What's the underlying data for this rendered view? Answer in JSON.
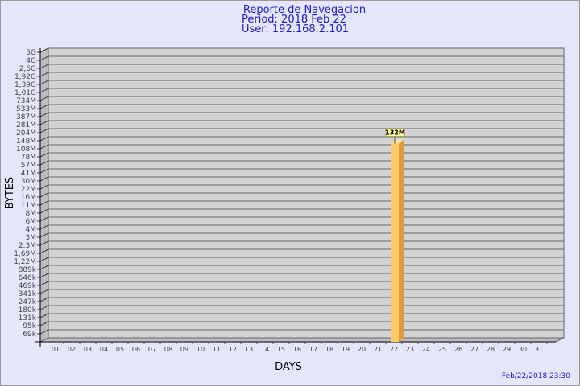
{
  "chart_data": {
    "type": "bar",
    "title": "Reporte de Navegacion",
    "subtitle": [
      "Period: 2018 Feb 22",
      "User: 192.168.2.101"
    ],
    "xlabel": "DAYS",
    "ylabel": "BYTES",
    "y_scale": "log-like (labeled ticks)",
    "y_ticks": [
      "5G",
      "4G",
      "2,6G",
      "1,92G",
      "1,39G",
      "1,01G",
      "734M",
      "533M",
      "387M",
      "281M",
      "204M",
      "148M",
      "108M",
      "78M",
      "57M",
      "41M",
      "30M",
      "22M",
      "16M",
      "11M",
      "8M",
      "6M",
      "4M",
      "3M",
      "2,3M",
      "1,69M",
      "1,22M",
      "889k",
      "646k",
      "469k",
      "341k",
      "247k",
      "180k",
      "131k",
      "95k",
      "69k"
    ],
    "categories": [
      "01",
      "02",
      "03",
      "04",
      "05",
      "06",
      "07",
      "08",
      "09",
      "10",
      "11",
      "12",
      "13",
      "14",
      "15",
      "16",
      "17",
      "18",
      "19",
      "20",
      "21",
      "22",
      "23",
      "24",
      "25",
      "26",
      "27",
      "28",
      "29",
      "30",
      "31"
    ],
    "values": [
      0,
      0,
      0,
      0,
      0,
      0,
      0,
      0,
      0,
      0,
      0,
      0,
      0,
      0,
      0,
      0,
      0,
      0,
      0,
      0,
      0,
      132,
      0,
      0,
      0,
      0,
      0,
      0,
      0,
      0,
      0
    ],
    "value_unit": "M",
    "data_labels": {
      "22": "132M"
    },
    "bar_color": "#ffc966",
    "grid": true,
    "footer": "Feb/22/2018 23:30"
  }
}
